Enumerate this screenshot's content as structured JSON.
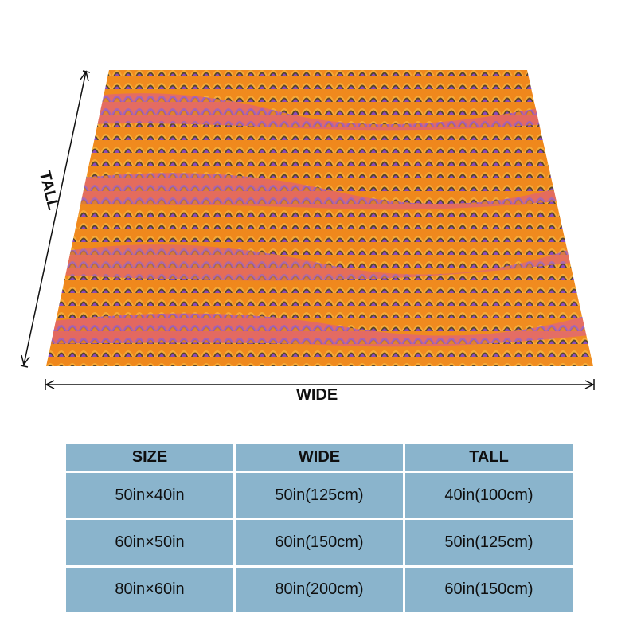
{
  "dimension_labels": {
    "tall": "TALL",
    "wide": "WIDE"
  },
  "colors": {
    "table_cell": "#8ab4cc",
    "pattern_orange": "#f08a1c",
    "pattern_purple": "#7a3fd6",
    "pattern_dark": "#3d3a2a",
    "pattern_pink": "#e0607a"
  },
  "size_table": {
    "headers": [
      "SIZE",
      "WIDE",
      "TALL"
    ],
    "rows": [
      [
        "50in×40in",
        "50in(125cm)",
        "40in(100cm)"
      ],
      [
        "60in×50in",
        "60in(150cm)",
        "50in(125cm)"
      ],
      [
        "80in×60in",
        "80in(200cm)",
        "60in(150cm)"
      ]
    ]
  }
}
